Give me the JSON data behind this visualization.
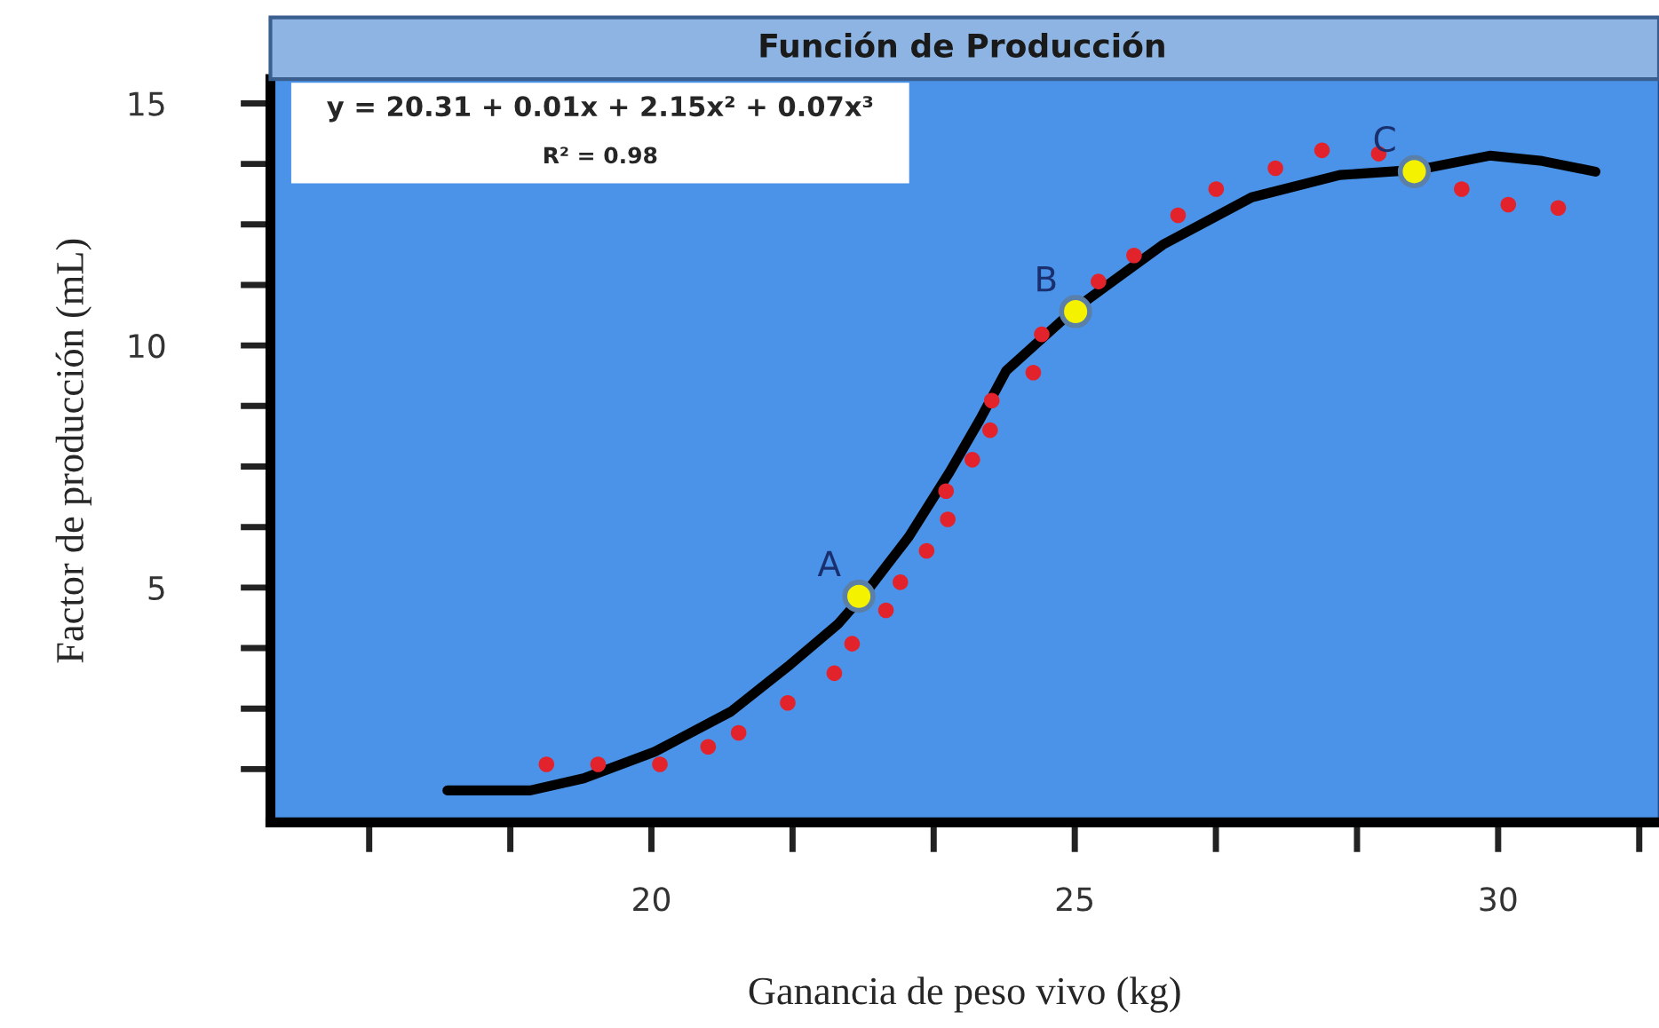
{
  "chart_data": {
    "type": "scatter",
    "title": "Función de Producción",
    "xlabel": "Ganancia de peso vivo (kg)",
    "ylabel": "Factor de producción (mL)",
    "xlim": [
      15.5,
      31.9
    ],
    "ylim": [
      0.15,
      15.5
    ],
    "xticks": [
      20,
      25,
      30
    ],
    "yticks": [
      5,
      10,
      15
    ],
    "grid": false,
    "marker": "circle",
    "series": [
      {
        "color": "#e3232b",
        "x": [
          18.76,
          19.37,
          20.1,
          20.67,
          21.03,
          21.61,
          22.16,
          22.37,
          22.77,
          22.94,
          23.25,
          23.5,
          23.48,
          23.79,
          24.0,
          24.02,
          24.51,
          24.61,
          25.28,
          25.7,
          26.22,
          26.67,
          27.37,
          27.92,
          28.59,
          29.57,
          30.12,
          30.71
        ],
        "values": [
          1.35,
          1.35,
          1.35,
          1.71,
          2.0,
          2.62,
          3.23,
          3.84,
          4.53,
          5.11,
          5.76,
          6.41,
          6.99,
          7.64,
          8.25,
          8.86,
          9.44,
          10.23,
          11.32,
          11.86,
          12.69,
          13.23,
          13.66,
          14.03,
          13.96,
          13.23,
          12.91,
          12.84
        ]
      },
      {
        "type": "line",
        "color": "#000000",
        "line_style": "solid",
        "marker": "none",
        "x": [
          17.59,
          18.57,
          19.2,
          20.04,
          20.94,
          21.64,
          22.2,
          22.56,
          23.04,
          23.52,
          23.88,
          24.19,
          24.99,
          26.04,
          27.09,
          28.13,
          29.06,
          29.9,
          30.52,
          31.15
        ],
        "values": [
          0.81,
          0.81,
          1.06,
          1.61,
          2.44,
          3.41,
          4.24,
          4.96,
          6.05,
          7.38,
          8.47,
          9.48,
          10.74,
          12.08,
          13.06,
          13.52,
          13.63,
          13.92,
          13.81,
          13.59
        ]
      },
      {
        "color": "#f5f200",
        "x": [
          22.45,
          25.01,
          29.01
        ],
        "values": [
          4.82,
          10.7,
          13.59
        ]
      }
    ],
    "annotations": [
      "y = 20.31 + 0.01x + 2.15x² + 0.07x³",
      "R² = 0.98",
      {
        "text": "A",
        "x": 22.45,
        "y": 4.82
      },
      {
        "text": "B",
        "x": 25.01,
        "y": 10.7
      },
      {
        "text": "C",
        "x": 29.01,
        "y": 13.59
      }
    ]
  }
}
